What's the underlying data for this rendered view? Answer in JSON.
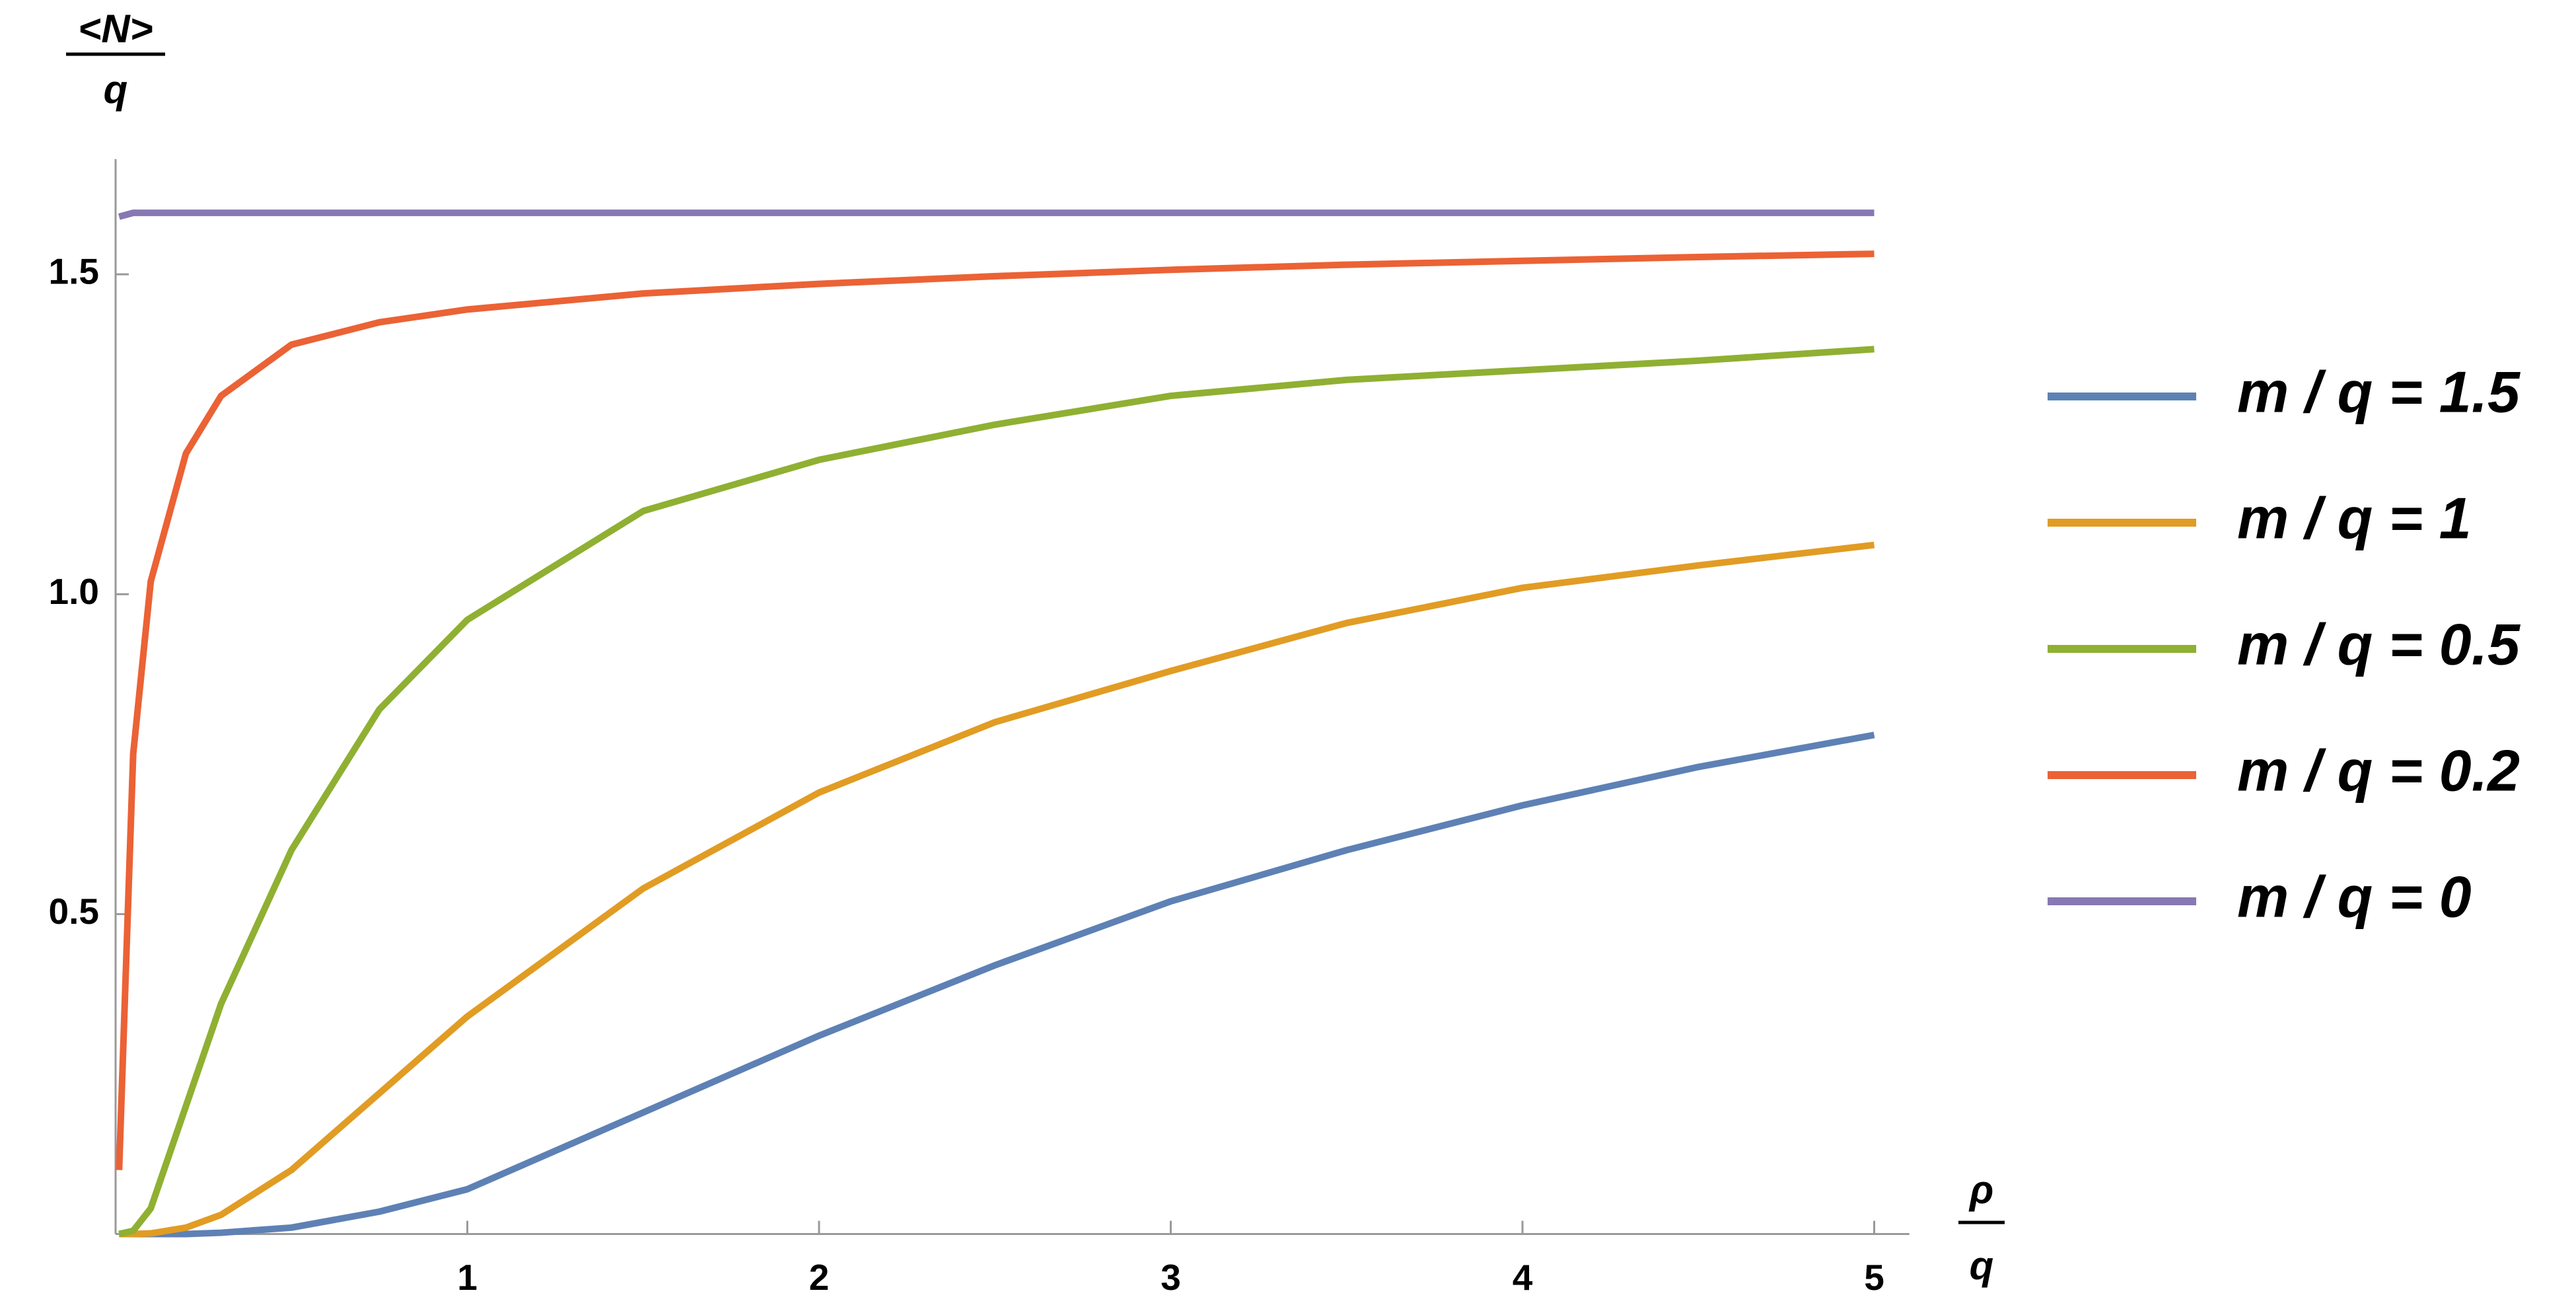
{
  "chart_data": {
    "type": "line",
    "ylabel": {
      "numerator": "<N>",
      "denominator": "q"
    },
    "xlabel": {
      "numerator": "ρ",
      "denominator": "q"
    },
    "x": [
      0.01,
      0.05,
      0.1,
      0.2,
      0.3,
      0.5,
      0.75,
      1,
      1.5,
      2,
      2.5,
      3,
      3.5,
      4,
      4.5,
      5
    ],
    "series": [
      {
        "name": "m / q = 1.5",
        "color": "#5e81b5",
        "values": [
          0,
          0,
          0,
          0,
          0.002,
          0.01,
          0.035,
          0.07,
          0.19,
          0.31,
          0.42,
          0.52,
          0.6,
          0.67,
          0.73,
          0.78
        ]
      },
      {
        "name": "m / q = 1",
        "color": "#e19c24",
        "values": [
          0,
          0,
          0.001,
          0.01,
          0.03,
          0.1,
          0.22,
          0.34,
          0.54,
          0.69,
          0.8,
          0.88,
          0.955,
          1.01,
          1.045,
          1.077
        ]
      },
      {
        "name": "m / q = 0.5",
        "color": "#8fb032",
        "values": [
          0,
          0.005,
          0.04,
          0.2,
          0.36,
          0.6,
          0.82,
          0.96,
          1.13,
          1.21,
          1.265,
          1.31,
          1.335,
          1.35,
          1.365,
          1.383
        ]
      },
      {
        "name": "m / q = 0.2",
        "color": "#eb6235",
        "values": [
          0.1,
          0.75,
          1.02,
          1.22,
          1.31,
          1.39,
          1.425,
          1.445,
          1.47,
          1.485,
          1.497,
          1.507,
          1.515,
          1.521,
          1.527,
          1.532
        ]
      },
      {
        "name": "m / q = 0",
        "color": "#8778b3",
        "values": [
          1.59,
          1.596,
          1.596,
          1.596,
          1.596,
          1.596,
          1.596,
          1.596,
          1.596,
          1.596,
          1.596,
          1.596,
          1.596,
          1.596,
          1.596,
          1.596
        ]
      }
    ],
    "xlim": [
      0,
      5.1
    ],
    "xticks": [
      1,
      2,
      3,
      4,
      5
    ],
    "ylim": [
      0,
      1.68
    ],
    "yticks": [
      0.5,
      {
        "value": 1,
        "label": "1.0"
      },
      1.5
    ],
    "legend": "right",
    "grid": false
  }
}
